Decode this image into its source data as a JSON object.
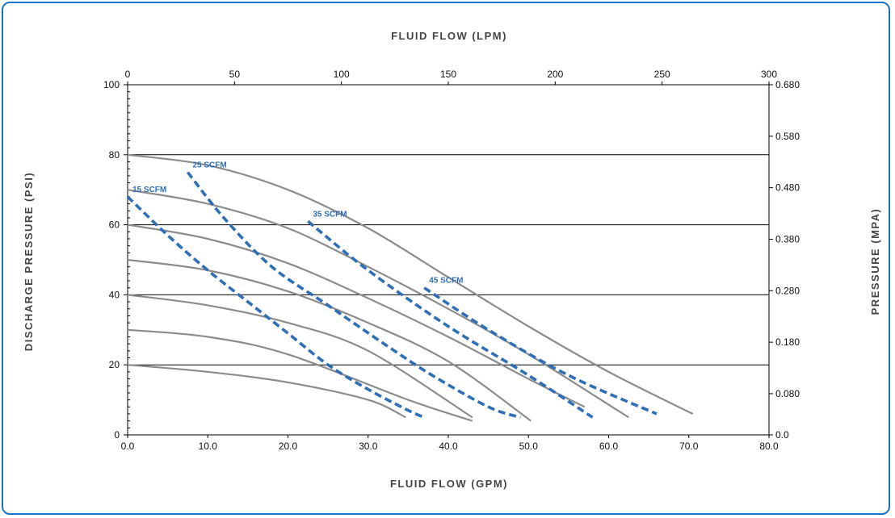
{
  "colors": {
    "border": "#1a73c7",
    "pressure_curve": "#8c8c8c",
    "air_curve": "#2e6fb7",
    "gridline": "#000000"
  },
  "chart_data": {
    "type": "line",
    "x_bottom": {
      "label": "FLUID FLOW (GPM)",
      "range": [
        0,
        80
      ],
      "ticks": [
        "0.0",
        "10.0",
        "20.0",
        "30.0",
        "40.0",
        "50.0",
        "60.0",
        "70.0",
        "80.0"
      ]
    },
    "x_top": {
      "label": "FLUID FLOW (LPM)",
      "range": [
        0,
        300
      ],
      "ticks": [
        "0",
        "50",
        "100",
        "150",
        "200",
        "250",
        "300"
      ]
    },
    "y_left": {
      "label": "DISCHARGE PRESSURE (PSI)",
      "range": [
        0,
        100
      ],
      "ticks": [
        "0",
        "20",
        "40",
        "60",
        "80",
        "100"
      ]
    },
    "y_right": {
      "label": "PRESSURE (MPA)",
      "range": [
        0.0,
        0.68
      ],
      "ticks": [
        "0.0",
        "0.080",
        "0.180",
        "0.280",
        "0.380",
        "0.480",
        "0.580",
        "0.680"
      ]
    },
    "gridlines_y": [
      20,
      40,
      60,
      80
    ],
    "pressure_series": [
      {
        "points": [
          [
            0,
            80
          ],
          [
            10,
            77
          ],
          [
            20,
            70
          ],
          [
            30,
            59
          ],
          [
            40,
            45
          ],
          [
            50,
            31
          ],
          [
            60,
            18
          ],
          [
            70.5,
            6
          ]
        ]
      },
      {
        "points": [
          [
            0,
            70
          ],
          [
            10,
            66
          ],
          [
            20,
            59
          ],
          [
            30,
            48
          ],
          [
            40,
            36
          ],
          [
            50,
            23
          ],
          [
            62.5,
            5
          ]
        ]
      },
      {
        "points": [
          [
            0,
            60
          ],
          [
            10,
            56
          ],
          [
            20,
            49
          ],
          [
            30,
            39
          ],
          [
            40,
            28
          ],
          [
            50,
            16
          ],
          [
            57,
            8
          ]
        ]
      },
      {
        "points": [
          [
            0,
            50
          ],
          [
            10,
            47
          ],
          [
            20,
            41
          ],
          [
            30,
            32
          ],
          [
            40,
            21
          ],
          [
            50.3,
            4
          ]
        ]
      },
      {
        "points": [
          [
            0,
            40
          ],
          [
            10,
            37
          ],
          [
            20,
            32
          ],
          [
            30,
            24
          ],
          [
            43,
            5
          ]
        ]
      },
      {
        "points": [
          [
            0,
            30
          ],
          [
            10,
            28
          ],
          [
            20,
            23
          ],
          [
            35,
            10
          ],
          [
            43,
            4
          ]
        ]
      },
      {
        "points": [
          [
            0,
            20
          ],
          [
            10,
            18
          ],
          [
            20,
            15
          ],
          [
            30,
            10
          ],
          [
            34.7,
            5
          ]
        ]
      }
    ],
    "air_series": [
      {
        "name": "15 SCFM",
        "points": [
          [
            0,
            68
          ],
          [
            5,
            57
          ],
          [
            10,
            47
          ],
          [
            15,
            38
          ],
          [
            20,
            29
          ],
          [
            25,
            20
          ],
          [
            30,
            13
          ],
          [
            35,
            7
          ],
          [
            37,
            5
          ]
        ]
      },
      {
        "name": "25 SCFM",
        "points": [
          [
            7.5,
            75
          ],
          [
            12,
            62
          ],
          [
            18,
            48
          ],
          [
            25,
            37
          ],
          [
            32,
            26
          ],
          [
            38,
            17
          ],
          [
            45,
            8
          ],
          [
            49,
            5
          ]
        ]
      },
      {
        "name": "35 SCFM",
        "points": [
          [
            22.5,
            61
          ],
          [
            30,
            47
          ],
          [
            40,
            31
          ],
          [
            50,
            17
          ],
          [
            58,
            5
          ]
        ]
      },
      {
        "name": "45 SCFM",
        "points": [
          [
            37,
            42
          ],
          [
            45,
            30
          ],
          [
            55,
            17
          ],
          [
            66,
            6
          ]
        ]
      }
    ]
  }
}
